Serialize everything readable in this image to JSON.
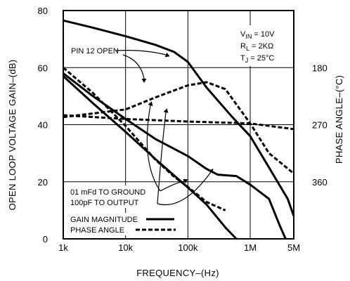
{
  "chart_data": {
    "type": "line",
    "xlabel": "FREQUENCY–(Hz)",
    "ylabel": "OPEN LOOP VOLTAGE GAIN–(dB)",
    "y2label": "PHASE ANGLE–(°C)",
    "xscale": "log",
    "xlim": [
      1000,
      5000000
    ],
    "ylim": [
      0,
      80
    ],
    "y2lim": [
      90,
      450
    ],
    "grid": true,
    "x_ticks": [
      {
        "value": 1000,
        "label": "1k"
      },
      {
        "value": 10000,
        "label": "10k"
      },
      {
        "value": 100000,
        "label": "100k"
      },
      {
        "value": 1000000,
        "label": "1M"
      },
      {
        "value": 5000000,
        "label": "5M"
      }
    ],
    "y_ticks": [
      {
        "value": 0,
        "label": "0"
      },
      {
        "value": 20,
        "label": "20"
      },
      {
        "value": 40,
        "label": "40"
      },
      {
        "value": 60,
        "label": "60"
      },
      {
        "value": 80,
        "label": "80"
      }
    ],
    "y2_ticks": [
      {
        "value": 180,
        "label": "180"
      },
      {
        "value": 270,
        "label": "270"
      },
      {
        "value": 360,
        "label": "360"
      }
    ],
    "conditions": [
      {
        "prefix": "V",
        "sub": "IN",
        "text": " = 10V"
      },
      {
        "prefix": "R",
        "sub": "L",
        "text": " = 2KΩ"
      },
      {
        "prefix": "T",
        "sub": "J",
        "text": " = 25°C"
      }
    ],
    "annotations": {
      "pin12": "PIN 12 OPEN",
      "cap_ground": "01 mFd TO GROUND",
      "cap_output": "100pF TO OUTPUT"
    },
    "legend": {
      "placement": "bottom-left",
      "items": [
        {
          "label": "GAIN MAGNITUDE",
          "style": "solid"
        },
        {
          "label": "PHASE ANGLE",
          "style": "dashed"
        }
      ]
    },
    "series": [
      {
        "role": "gain",
        "style": "solid",
        "points": [
          [
            1000,
            76.5
          ],
          [
            3000,
            74
          ],
          [
            10000,
            71
          ],
          [
            30000,
            68
          ],
          [
            60000,
            65.5
          ],
          [
            100000,
            62
          ],
          [
            200000,
            53
          ],
          [
            500000,
            43
          ],
          [
            1000000,
            36
          ],
          [
            2000000,
            25
          ],
          [
            4000000,
            14
          ],
          [
            5000000,
            8
          ]
        ]
      },
      {
        "role": "gain",
        "style": "solid",
        "points": [
          [
            1000,
            57
          ],
          [
            3000,
            47.5
          ],
          [
            10000,
            37.5
          ],
          [
            30000,
            28
          ],
          [
            100000,
            18
          ],
          [
            200000,
            12
          ],
          [
            400000,
            4
          ],
          [
            600000,
            0
          ]
        ]
      },
      {
        "role": "gain",
        "style": "solid",
        "points": [
          [
            1000,
            58
          ],
          [
            3000,
            50
          ],
          [
            10000,
            42
          ],
          [
            30000,
            35
          ],
          [
            100000,
            29
          ],
          [
            200000,
            24.5
          ],
          [
            300000,
            22.5
          ],
          [
            600000,
            22
          ],
          [
            1000000,
            19
          ],
          [
            2000000,
            14
          ],
          [
            3000000,
            4.5
          ],
          [
            3700000,
            0
          ]
        ]
      },
      {
        "role": "phase",
        "style": "dashed",
        "points": [
          [
            1000,
            180
          ],
          [
            3000,
            220
          ],
          [
            10000,
            272
          ],
          [
            30000,
            325
          ],
          [
            60000,
            352
          ],
          [
            100000,
            368
          ],
          [
            200000,
            392
          ],
          [
            400000,
            405
          ]
        ]
      },
      {
        "role": "phase",
        "style": "dashed",
        "points": [
          [
            1000,
            258
          ],
          [
            10000,
            246
          ],
          [
            30000,
            227
          ],
          [
            100000,
            208
          ],
          [
            200000,
            203
          ],
          [
            400000,
            214
          ],
          [
            1000000,
            268
          ],
          [
            2000000,
            315
          ],
          [
            5000000,
            347
          ]
        ]
      },
      {
        "role": "phase",
        "style": "dashed",
        "points": [
          [
            1000,
            255
          ],
          [
            10000,
            261
          ],
          [
            100000,
            265
          ],
          [
            1000000,
            268
          ],
          [
            5000000,
            277
          ]
        ]
      }
    ]
  }
}
